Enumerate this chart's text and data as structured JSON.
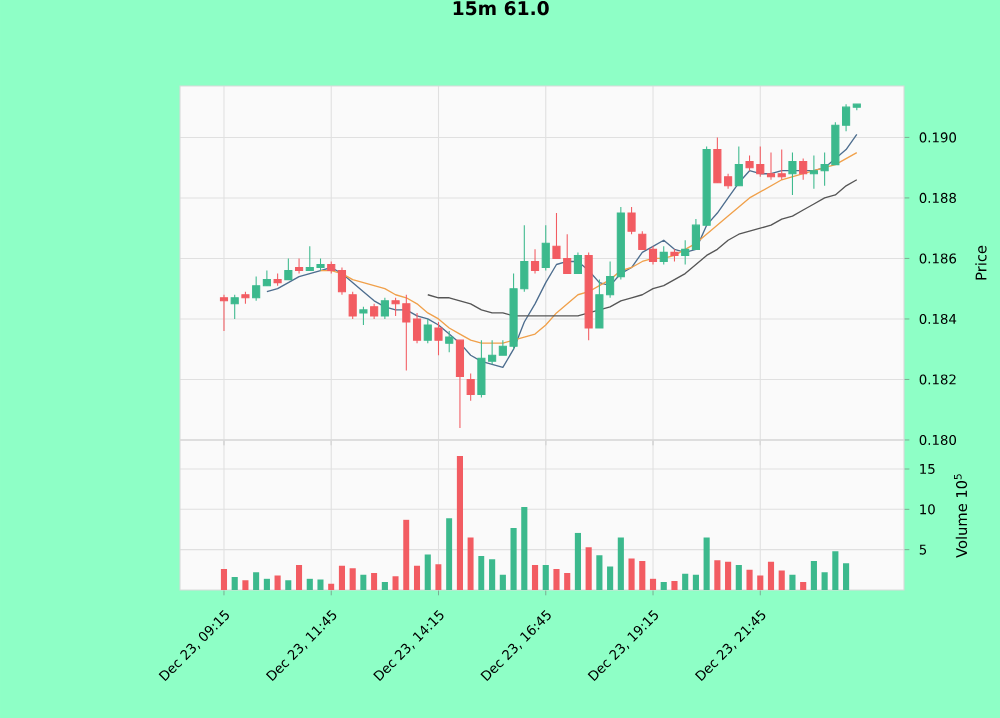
{
  "chart_data": [
    {
      "type": "candlestick",
      "title": "15m 61.0",
      "ylabel": "Price",
      "grid": true,
      "tick_labels": "y",
      "ylim": [
        0.18,
        0.1917
      ],
      "yticks": [
        {
          "value": 0.18,
          "label": "0.180"
        },
        {
          "value": 0.182,
          "label": "0.182"
        },
        {
          "value": 0.184,
          "label": "0.184"
        },
        {
          "value": 0.186,
          "label": "0.186"
        },
        {
          "value": 0.188,
          "label": "0.188"
        },
        {
          "value": 0.19,
          "label": "0.190"
        }
      ],
      "categories": [
        null,
        null,
        null,
        null,
        null,
        null,
        null,
        null,
        null,
        null,
        null,
        null,
        null,
        null,
        null,
        null,
        null,
        null,
        null,
        null,
        null,
        null,
        null,
        null,
        null,
        null,
        null,
        null,
        null,
        null,
        null,
        null,
        null,
        null,
        null,
        null,
        null,
        null,
        null,
        null,
        null,
        null,
        null,
        null,
        null,
        null,
        null,
        null,
        null,
        null,
        null,
        null,
        null,
        null,
        null,
        null,
        null,
        null,
        null,
        null
      ],
      "ohlc": [
        [
          0.1847,
          0.1848,
          0.1836,
          0.1846
        ],
        [
          0.1845,
          0.1848,
          0.184,
          0.1847
        ],
        [
          0.1848,
          0.1849,
          0.1845,
          0.1847
        ],
        [
          0.1847,
          0.1854,
          0.1846,
          0.1851
        ],
        [
          0.1851,
          0.1856,
          0.1851,
          0.1853
        ],
        [
          0.1853,
          0.1855,
          0.1851,
          0.1852
        ],
        [
          0.1853,
          0.186,
          0.1853,
          0.1856
        ],
        [
          0.1857,
          0.186,
          0.1855,
          0.1856
        ],
        [
          0.1856,
          0.1864,
          0.1856,
          0.1857
        ],
        [
          0.1857,
          0.186,
          0.1856,
          0.1858
        ],
        [
          0.1858,
          0.1859,
          0.1855,
          0.1856
        ],
        [
          0.1856,
          0.1857,
          0.1848,
          0.1849
        ],
        [
          0.1848,
          0.1849,
          0.184,
          0.1841
        ],
        [
          0.1842,
          0.1844,
          0.1838,
          0.1843
        ],
        [
          0.1844,
          0.1845,
          0.184,
          0.1841
        ],
        [
          0.1841,
          0.1847,
          0.184,
          0.1846
        ],
        [
          0.1846,
          0.1847,
          0.1841,
          0.1845
        ],
        [
          0.1845,
          0.1848,
          0.1823,
          0.1839
        ],
        [
          0.184,
          0.1842,
          0.1832,
          0.1833
        ],
        [
          0.1833,
          0.184,
          0.1832,
          0.1838
        ],
        [
          0.1837,
          0.1839,
          0.1828,
          0.1833
        ],
        [
          0.1832,
          0.1836,
          0.1829,
          0.1834
        ],
        [
          0.1833,
          0.1833,
          0.1804,
          0.1821
        ],
        [
          0.182,
          0.1822,
          0.1813,
          0.1815
        ],
        [
          0.1815,
          0.1833,
          0.1814,
          0.1827
        ],
        [
          0.1826,
          0.1833,
          0.1825,
          0.1828
        ],
        [
          0.1828,
          0.1833,
          0.1828,
          0.1831
        ],
        [
          0.1831,
          0.1855,
          0.183,
          0.185
        ],
        [
          0.185,
          0.1871,
          0.1849,
          0.1859
        ],
        [
          0.1859,
          0.1863,
          0.1855,
          0.1856
        ],
        [
          0.1857,
          0.1871,
          0.1856,
          0.1865
        ],
        [
          0.1864,
          0.1875,
          0.186,
          0.186
        ],
        [
          0.186,
          0.1868,
          0.1855,
          0.1855
        ],
        [
          0.1855,
          0.1862,
          0.1855,
          0.1861
        ],
        [
          0.1861,
          0.1862,
          0.1833,
          0.1837
        ],
        [
          0.1837,
          0.1853,
          0.1837,
          0.1848
        ],
        [
          0.1848,
          0.1859,
          0.1847,
          0.1854
        ],
        [
          0.1854,
          0.1877,
          0.1853,
          0.1875
        ],
        [
          0.1875,
          0.1877,
          0.1868,
          0.1869
        ],
        [
          0.1868,
          0.1869,
          0.1863,
          0.1863
        ],
        [
          0.1863,
          0.1864,
          0.1858,
          0.1859
        ],
        [
          0.1859,
          0.1864,
          0.1858,
          0.1862
        ],
        [
          0.1862,
          0.1863,
          0.1859,
          0.1861
        ],
        [
          0.1861,
          0.1866,
          0.1858,
          0.1863
        ],
        [
          0.1863,
          0.1873,
          0.1863,
          0.1871
        ],
        [
          0.1871,
          0.1897,
          0.1871,
          0.1896
        ],
        [
          0.1896,
          0.19,
          0.1885,
          0.1885
        ],
        [
          0.1887,
          0.1888,
          0.1883,
          0.1884
        ],
        [
          0.1884,
          0.1897,
          0.1884,
          0.1891
        ],
        [
          0.1892,
          0.1894,
          0.1889,
          0.189
        ],
        [
          0.1891,
          0.1897,
          0.1887,
          0.1888
        ],
        [
          0.1888,
          0.1895,
          0.1886,
          0.1887
        ],
        [
          0.1888,
          0.1896,
          0.1886,
          0.1887
        ],
        [
          0.1888,
          0.1895,
          0.1881,
          0.1892
        ],
        [
          0.1892,
          0.1893,
          0.1886,
          0.1888
        ],
        [
          0.1888,
          0.1894,
          0.1883,
          0.1889
        ],
        [
          0.1889,
          0.1895,
          0.1884,
          0.1891
        ],
        [
          0.1891,
          0.1905,
          0.1891,
          0.1904
        ],
        [
          0.1904,
          0.1911,
          0.1902,
          0.191
        ],
        [
          0.191,
          0.1911,
          0.1909,
          0.1911
        ]
      ],
      "colors": [
        "#f25c62",
        "#3cb98d",
        "#f25c62",
        "#3cb98d",
        "#3cb98d",
        "#f25c62",
        "#3cb98d",
        "#f25c62",
        "#3cb98d",
        "#3cb98d",
        "#f25c62",
        "#f25c62",
        "#f25c62",
        "#3cb98d",
        "#f25c62",
        "#3cb98d",
        "#f25c62",
        "#f25c62",
        "#f25c62",
        "#3cb98d",
        "#f25c62",
        "#3cb98d",
        "#f25c62",
        "#f25c62",
        "#3cb98d",
        "#3cb98d",
        "#3cb98d",
        "#3cb98d",
        "#3cb98d",
        "#f25c62",
        "#3cb98d",
        "#f25c62",
        "#f25c62",
        "#3cb98d",
        "#f25c62",
        "#3cb98d",
        "#3cb98d",
        "#3cb98d",
        "#f25c62",
        "#f25c62",
        "#f25c62",
        "#3cb98d",
        "#f25c62",
        "#3cb98d",
        "#3cb98d",
        "#3cb98d",
        "#f25c62",
        "#f25c62",
        "#3cb98d",
        "#f25c62",
        "#f25c62",
        "#f25c62",
        "#f25c62",
        "#3cb98d",
        "#f25c62",
        "#3cb98d",
        "#3cb98d",
        "#3cb98d",
        "#3cb98d",
        "#3cb98d"
      ],
      "series": [
        {
          "type": "line",
          "color": "#4d6d8e",
          "values": [
            null,
            null,
            null,
            null,
            0.1849,
            0.185,
            0.1852,
            0.1854,
            0.1855,
            0.1856,
            0.1857,
            0.1855,
            0.1852,
            0.1849,
            0.1846,
            0.1844,
            0.1843,
            0.1843,
            0.1841,
            0.184,
            0.1838,
            0.1835,
            0.1832,
            0.1828,
            0.1826,
            0.1825,
            0.1824,
            0.183,
            0.1839,
            0.1845,
            0.1852,
            0.1858,
            0.1859,
            0.1859,
            0.1856,
            0.1852,
            0.1851,
            0.1855,
            0.1857,
            0.1862,
            0.1864,
            0.1866,
            0.1863,
            0.1862,
            0.1863,
            0.1871,
            0.1875,
            0.188,
            0.1885,
            0.1889,
            0.1888,
            0.1888,
            0.1889,
            0.1889,
            0.1889,
            0.1889,
            0.189,
            0.1893,
            0.1896,
            0.1901
          ]
        },
        {
          "type": "line",
          "color": "#f0a04a",
          "values": [
            null,
            null,
            null,
            null,
            null,
            null,
            null,
            null,
            null,
            0.1856,
            0.1856,
            0.1855,
            0.1853,
            0.1852,
            0.1851,
            0.185,
            0.1848,
            0.1847,
            0.1845,
            0.1842,
            0.184,
            0.1837,
            0.1835,
            0.1833,
            0.1832,
            0.1832,
            0.1832,
            0.1833,
            0.1834,
            0.1835,
            0.1838,
            0.1842,
            0.1845,
            0.1848,
            0.1849,
            0.1851,
            0.1853,
            0.1856,
            0.1857,
            0.1859,
            0.186,
            0.186,
            0.1861,
            0.1863,
            0.1865,
            0.1868,
            0.1871,
            0.1874,
            0.1877,
            0.188,
            0.1882,
            0.1884,
            0.1886,
            0.1887,
            0.1888,
            0.1889,
            0.189,
            0.1891,
            0.1893,
            0.1895
          ]
        },
        {
          "type": "line",
          "color": "#555555",
          "values": [
            null,
            null,
            null,
            null,
            null,
            null,
            null,
            null,
            null,
            null,
            null,
            null,
            null,
            null,
            null,
            null,
            null,
            null,
            null,
            0.1848,
            0.1847,
            0.1847,
            0.1846,
            0.1845,
            0.1843,
            0.1842,
            0.1842,
            0.1841,
            0.1841,
            0.1841,
            0.1841,
            0.1841,
            0.1841,
            0.1841,
            0.1842,
            0.1843,
            0.1844,
            0.1846,
            0.1847,
            0.1848,
            0.185,
            0.1851,
            0.1853,
            0.1855,
            0.1858,
            0.1861,
            0.1863,
            0.1866,
            0.1868,
            0.1869,
            0.187,
            0.1871,
            0.1873,
            0.1874,
            0.1876,
            0.1878,
            0.188,
            0.1881,
            0.1884,
            0.1886
          ]
        }
      ]
    },
    {
      "type": "bar",
      "ylabel": "Volume 10$^{5}$",
      "grid": true,
      "ylim": [
        0,
        18.6
      ],
      "yticks": [
        5,
        10,
        15
      ],
      "categories": [
        "Dec 23, 09:15",
        null,
        null,
        null,
        null,
        null,
        null,
        null,
        null,
        null,
        "Dec 23, 11:45",
        null,
        null,
        null,
        null,
        null,
        null,
        null,
        null,
        null,
        "Dec 23, 14:15",
        null,
        null,
        null,
        null,
        null,
        null,
        null,
        null,
        null,
        "Dec 23, 16:45",
        null,
        null,
        null,
        null,
        null,
        null,
        null,
        null,
        null,
        "Dec 23, 19:15",
        null,
        null,
        null,
        null,
        null,
        null,
        null,
        null,
        null,
        "Dec 23, 21:45",
        null,
        null,
        null,
        null,
        null,
        null,
        null,
        null,
        null
      ],
      "values": [
        2.6,
        1.6,
        1.2,
        2.2,
        1.4,
        1.8,
        1.2,
        3.1,
        1.4,
        1.3,
        0.8,
        3.0,
        2.7,
        1.9,
        2.1,
        1.0,
        1.7,
        8.7,
        3.0,
        4.4,
        3.2,
        8.9,
        16.6,
        6.5,
        4.2,
        3.8,
        1.9,
        7.7,
        10.3,
        3.1,
        3.1,
        2.6,
        2.1,
        7.1,
        5.3,
        4.3,
        2.9,
        6.5,
        3.9,
        3.6,
        1.4,
        1.0,
        1.1,
        2.0,
        1.9,
        6.5,
        3.7,
        3.5,
        3.1,
        2.5,
        1.8,
        3.5,
        2.4,
        1.9,
        1.0,
        3.6,
        2.2,
        4.8,
        3.3,
        null
      ],
      "colors": [
        "#f25c62",
        "#3cb98d",
        "#f25c62",
        "#3cb98d",
        "#3cb98d",
        "#f25c62",
        "#3cb98d",
        "#f25c62",
        "#3cb98d",
        "#3cb98d",
        "#f25c62",
        "#f25c62",
        "#f25c62",
        "#3cb98d",
        "#f25c62",
        "#3cb98d",
        "#f25c62",
        "#f25c62",
        "#f25c62",
        "#3cb98d",
        "#f25c62",
        "#3cb98d",
        "#f25c62",
        "#f25c62",
        "#3cb98d",
        "#3cb98d",
        "#3cb98d",
        "#3cb98d",
        "#3cb98d",
        "#f25c62",
        "#3cb98d",
        "#f25c62",
        "#f25c62",
        "#3cb98d",
        "#f25c62",
        "#3cb98d",
        "#3cb98d",
        "#3cb98d",
        "#f25c62",
        "#f25c62",
        "#f25c62",
        "#3cb98d",
        "#f25c62",
        "#3cb98d",
        "#3cb98d",
        "#3cb98d",
        "#f25c62",
        "#f25c62",
        "#3cb98d",
        "#f25c62",
        "#f25c62",
        "#f25c62",
        "#f25c62",
        "#3cb98d",
        "#f25c62",
        "#3cb98d",
        "#3cb98d",
        "#3cb98d",
        "#3cb98d",
        "#3cb98d"
      ]
    }
  ]
}
